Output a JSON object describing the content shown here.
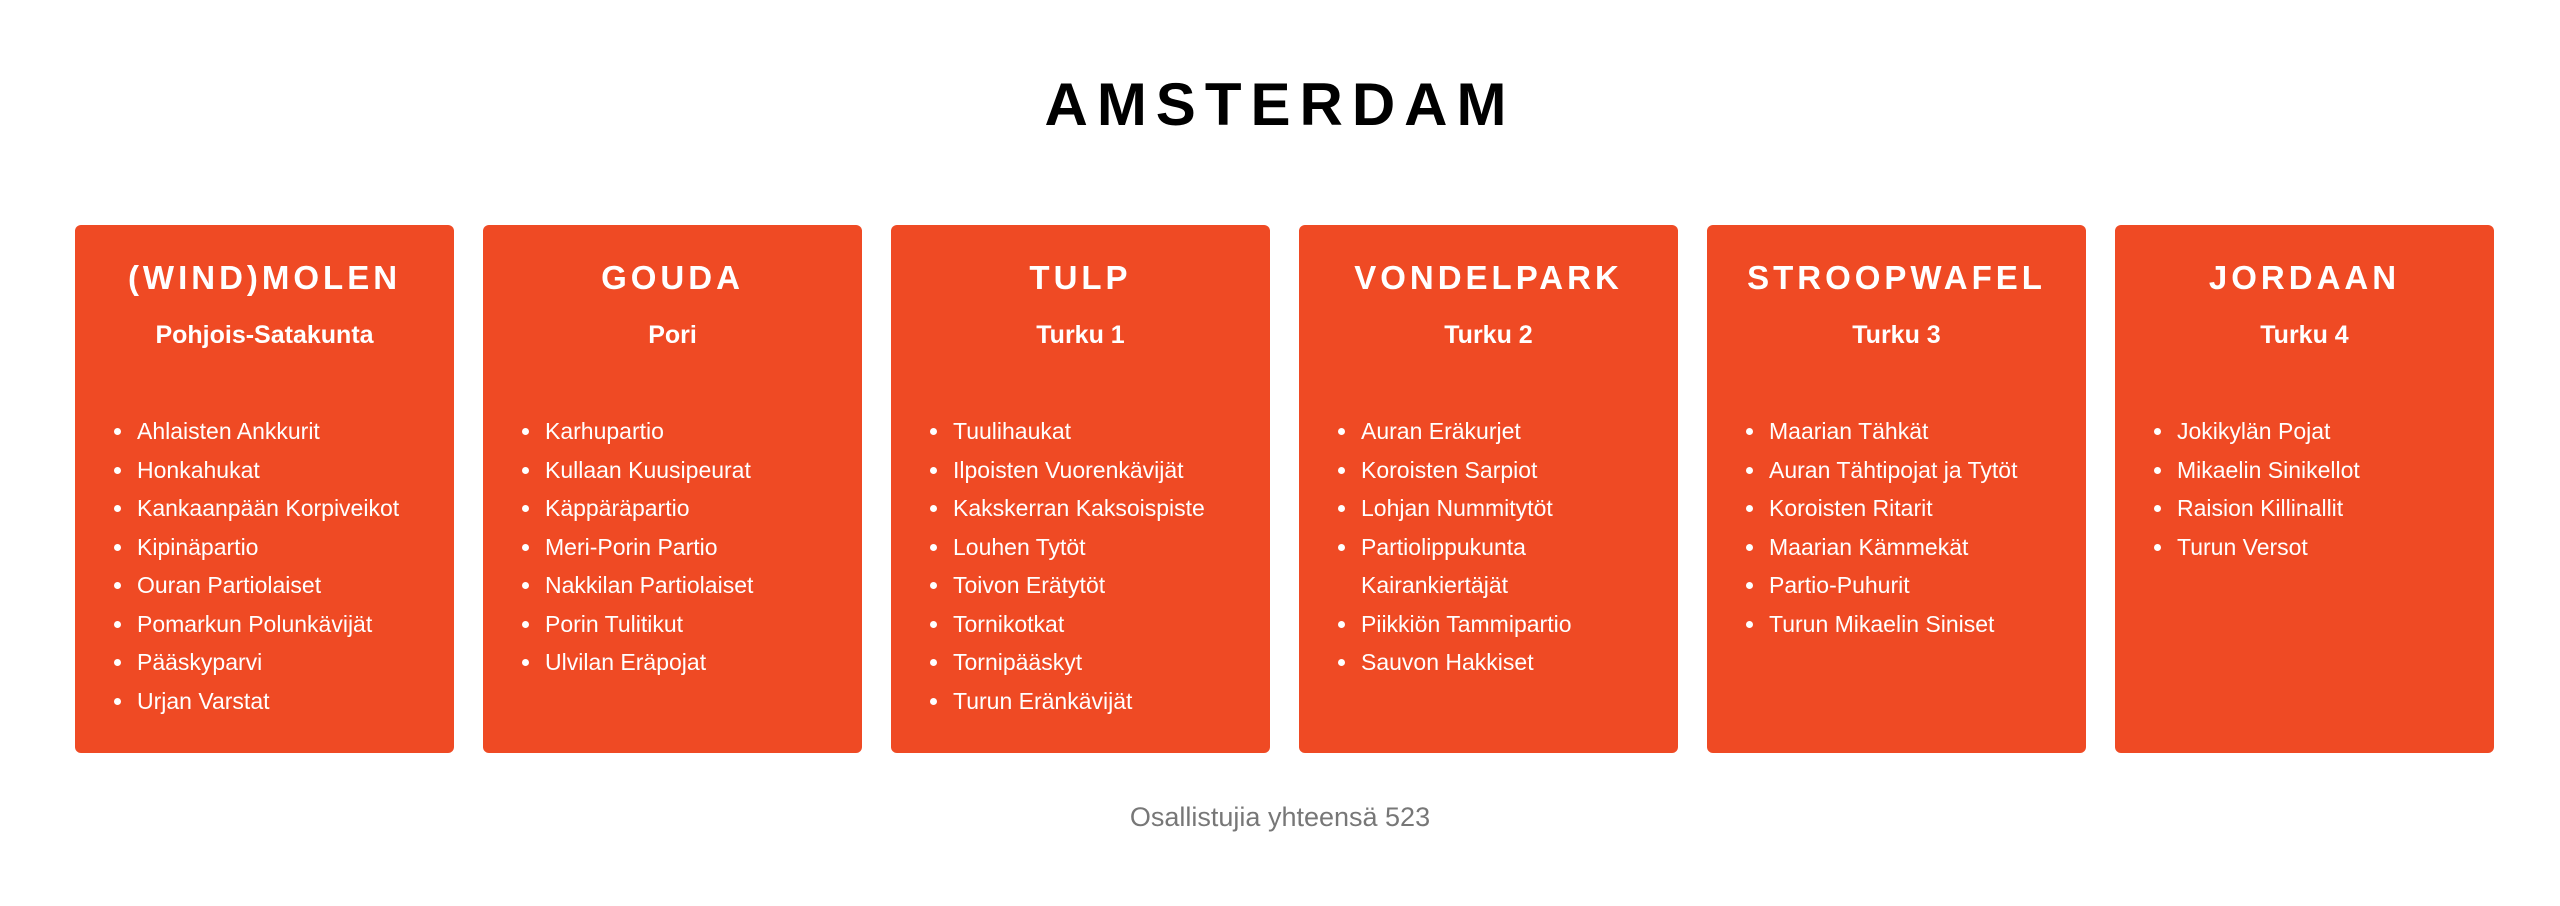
{
  "page": {
    "title": "AMSTERDAM",
    "footer": "Osallistujia yhteensä 523",
    "accent_color": "#ef4a24"
  },
  "cards": [
    {
      "title": "(WIND)MOLEN",
      "subtitle": "Pohjois-Satakunta",
      "items": [
        "Ahlaisten Ankkurit",
        "Honkahukat",
        "Kankaanpään Korpiveikot",
        "Kipinäpartio",
        "Ouran Partiolaiset",
        "Pomarkun Polunkävijät",
        "Pääskyparvi",
        "Urjan Varstat"
      ]
    },
    {
      "title": "GOUDA",
      "subtitle": "Pori",
      "items": [
        "Karhupartio",
        "Kullaan Kuusipeurat",
        "Käppäräpartio",
        "Meri-Porin Partio",
        "Nakkilan Partiolaiset",
        "Porin Tulitikut",
        "Ulvilan Eräpojat"
      ]
    },
    {
      "title": "TULP",
      "subtitle": "Turku 1",
      "items": [
        "Tuulihaukat",
        "Ilpoisten Vuorenkävijät",
        "Kakskerran Kaksoispiste",
        "Louhen Tytöt",
        "Toivon Erätytöt",
        "Tornikotkat",
        "Tornipääskyt",
        "Turun Eränkävijät"
      ]
    },
    {
      "title": "VONDELPARK",
      "subtitle": "Turku 2",
      "items": [
        "Auran Eräkurjet",
        "Koroisten Sarpiot",
        "Lohjan Nummitytöt",
        "Partiolippukunta Kairankiertäjät",
        "Piikkiön Tammipartio",
        "Sauvon Hakkiset"
      ]
    },
    {
      "title": "STROOPWAFEL",
      "subtitle": "Turku 3",
      "items": [
        "Maarian Tähkät",
        "Auran Tähtipojat ja Tytöt",
        "Koroisten Ritarit",
        "Maarian Kämmekät",
        "Partio-Puhurit",
        "Turun Mikaelin Siniset"
      ]
    },
    {
      "title": "JORDAAN",
      "subtitle": "Turku 4",
      "items": [
        "Jokikylän Pojat",
        "Mikaelin Sinikellot",
        "Raision Killinallit",
        "Turun Versot"
      ]
    }
  ]
}
